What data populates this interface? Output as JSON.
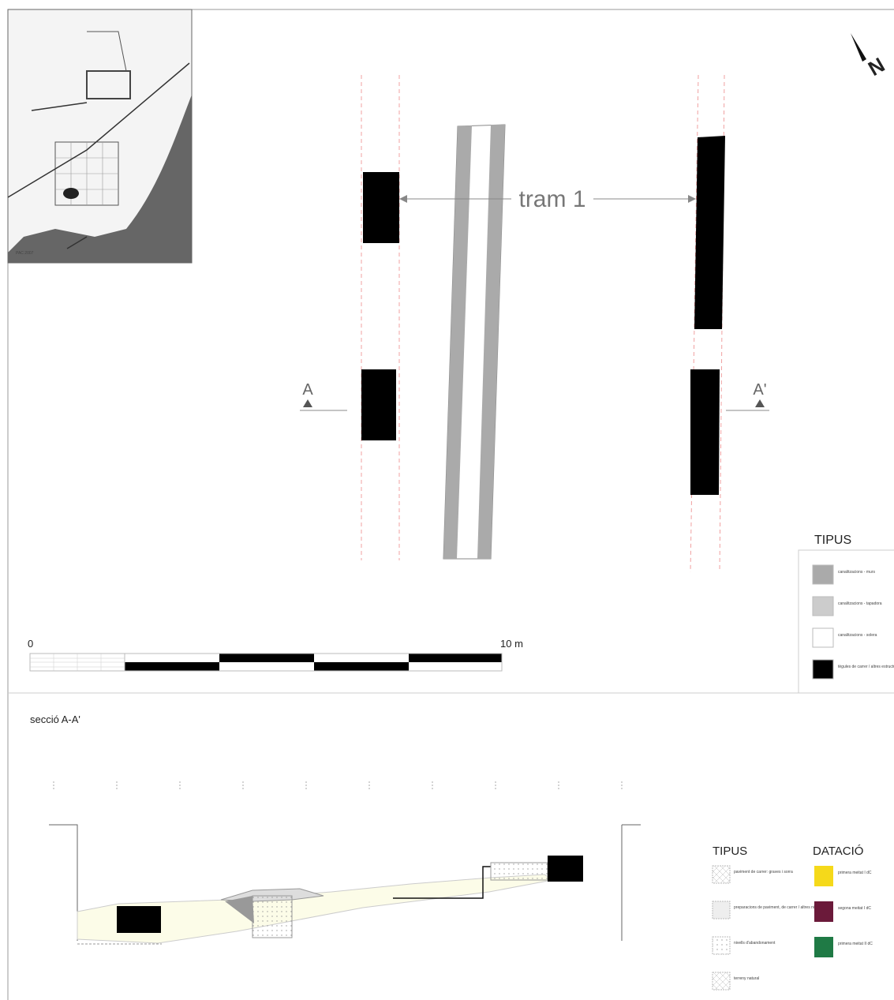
{
  "plan": {
    "north": "N",
    "label": "tram 1",
    "section_left": "A",
    "section_right": "A'",
    "scale_start": "0",
    "scale_end": "10 m",
    "inset_note": "PAC 2007"
  },
  "plan_legend": {
    "title": "TIPUS",
    "items": [
      "canalitzacions - murs",
      "canalitzacions - tapadora",
      "canalitzacions - solera",
      "tègules de carrer / altres estructures"
    ]
  },
  "section": {
    "title": "secció A-A'"
  },
  "section_legend": {
    "types_title": "TIPUS",
    "types": [
      "paviment de carrer: graves i sorra",
      "preparacions de paviment, de carrer / altres nivells",
      "nivells d'abandonament",
      "terreny natural"
    ],
    "dating_title": "DATACIÓ",
    "dating": [
      "primera meitat I dC",
      "segona meitat I dC",
      "primera meitat II dC"
    ]
  }
}
